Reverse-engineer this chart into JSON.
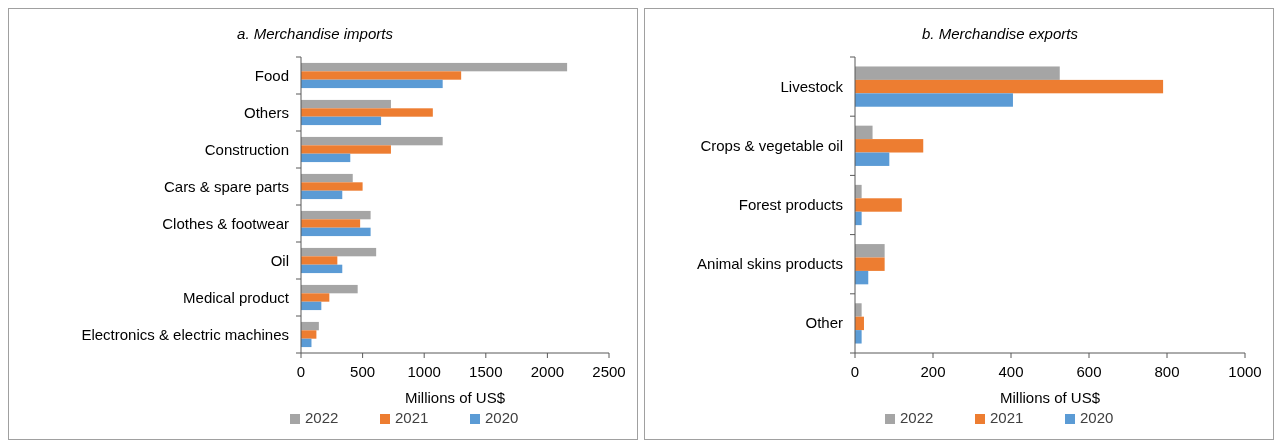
{
  "chart_data": [
    {
      "type": "bar",
      "orientation": "horizontal",
      "title": "a. Merchandise imports",
      "xlabel": "Millions of US$",
      "categories": [
        "Food",
        "Others",
        "Construction",
        "Cars & spare parts",
        "Clothes & footwear",
        "Oil",
        "Medical product",
        "Electronics & electric machines"
      ],
      "series": [
        {
          "name": "2022",
          "color": "#a5a5a5",
          "values": [
            2160,
            730,
            1150,
            420,
            565,
            610,
            460,
            145
          ]
        },
        {
          "name": "2021",
          "color": "#ed7d31",
          "values": [
            1300,
            1070,
            730,
            500,
            480,
            295,
            230,
            125
          ]
        },
        {
          "name": "2020",
          "color": "#5b9bd5",
          "values": [
            1150,
            650,
            400,
            335,
            565,
            335,
            165,
            85
          ]
        }
      ],
      "xlim": [
        0,
        2500
      ],
      "xticks": [
        0,
        500,
        1000,
        1500,
        2000,
        2500
      ],
      "legend": "bottom"
    },
    {
      "type": "bar",
      "orientation": "horizontal",
      "title": "b. Merchandise exports",
      "xlabel": "Millions of US$",
      "categories": [
        "Livestock",
        "Crops & vegetable oil",
        "Forest products",
        "Animal skins products",
        "Other"
      ],
      "series": [
        {
          "name": "2022",
          "color": "#a5a5a5",
          "values": [
            525,
            45,
            17,
            76,
            17
          ]
        },
        {
          "name": "2021",
          "color": "#ed7d31",
          "values": [
            790,
            175,
            120,
            76,
            23
          ]
        },
        {
          "name": "2020",
          "color": "#5b9bd5",
          "values": [
            405,
            88,
            17,
            34,
            17
          ]
        }
      ],
      "xlim": [
        0,
        1000
      ],
      "xticks": [
        0,
        200,
        400,
        600,
        800,
        1000
      ],
      "legend": "bottom"
    }
  ]
}
